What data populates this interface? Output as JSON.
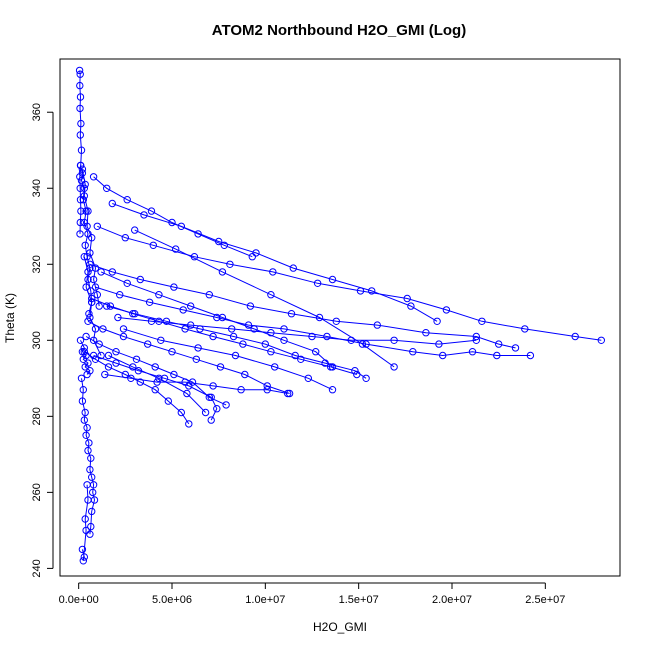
{
  "chart_data": {
    "type": "scatter",
    "title": "ATOM2 Northbound H2O_GMI (Log)",
    "xlabel": "H2O_GMI",
    "ylabel": "Theta (K)",
    "xlim": [
      -1000000,
      29000000
    ],
    "ylim": [
      238,
      374
    ],
    "x_ticks": [
      0,
      5000000,
      10000000,
      15000000,
      20000000,
      25000000
    ],
    "x_tick_labels": [
      "0.0e+00",
      "5.0e+06",
      "1.0e+07",
      "1.5e+07",
      "2.0e+07",
      "2.5e+07"
    ],
    "y_ticks": [
      240,
      260,
      280,
      300,
      320,
      340,
      360
    ],
    "y_tick_labels": [
      "240",
      "260",
      "280",
      "300",
      "320",
      "340",
      "360"
    ],
    "grid": false,
    "legend": "none",
    "color": "#0000ff",
    "marker": "open-circle",
    "connected": true,
    "series": [
      {
        "x": [
          50000,
          80000,
          60000,
          100000,
          70000,
          120000,
          90000,
          150000,
          110000,
          60000,
          80000,
          100000,
          120000,
          90000,
          70000
        ],
        "y": [
          371,
          370,
          367,
          364,
          361,
          357,
          354,
          350,
          346,
          343,
          340,
          337,
          334,
          331,
          328
        ]
      },
      {
        "x": [
          100000,
          200000,
          150000,
          300000,
          250000,
          400000,
          300000,
          500000,
          350000,
          450000,
          600000,
          500000,
          650000,
          700000,
          550000
        ],
        "y": [
          346,
          344,
          342,
          340,
          337,
          334,
          331,
          328,
          325,
          322,
          319,
          316,
          313,
          310,
          307
        ]
      },
      {
        "x": [
          200000,
          350000,
          300000,
          500000,
          450000,
          700000,
          600000,
          900000,
          800000,
          1000000,
          1100000
        ],
        "y": [
          345,
          341,
          338,
          334,
          330,
          327,
          323,
          319,
          316,
          312,
          309
        ]
      },
      {
        "x": [
          300000,
          500000,
          400000,
          700000,
          600000,
          900000,
          800000,
          1200000
        ],
        "y": [
          322,
          318,
          314,
          310,
          306,
          303,
          300,
          296
        ]
      },
      {
        "x": [
          100000,
          300000,
          200000,
          400000,
          250000,
          500000,
          350000,
          600000,
          450000
        ],
        "y": [
          300,
          298,
          297,
          296,
          295,
          294,
          293,
          292,
          291
        ]
      },
      {
        "x": [
          150000,
          250000,
          200000,
          350000,
          300000,
          450000,
          400000,
          550000,
          500000,
          650000,
          600000,
          700000,
          800000,
          750000,
          850000,
          700000,
          650000,
          600000
        ],
        "y": [
          290,
          287,
          284,
          281,
          279,
          277,
          275,
          273,
          271,
          269,
          266,
          264,
          262,
          260,
          258,
          255,
          251,
          249
        ]
      },
      {
        "x": [
          200000,
          300000,
          250000,
          400000,
          350000,
          500000,
          450000
        ],
        "y": [
          245,
          243,
          242,
          250,
          253,
          258,
          262
        ]
      },
      {
        "x": [
          800000,
          1500000,
          2600000,
          3900000,
          5000000,
          6400000,
          7800000,
          9300000
        ],
        "y": [
          343,
          340,
          337,
          334,
          331,
          328,
          325,
          322
        ]
      },
      {
        "x": [
          1000000,
          2500000,
          4000000,
          6200000,
          8100000,
          10400000,
          12800000,
          15100000,
          17600000,
          19700000,
          21600000,
          23900000,
          26600000,
          28000000
        ],
        "y": [
          330,
          327,
          325,
          322,
          320,
          318,
          315,
          313,
          311,
          308,
          305,
          303,
          301,
          300
        ]
      },
      {
        "x": [
          600000,
          1800000,
          3300000,
          5100000,
          7000000,
          9200000,
          11400000,
          13800000,
          16000000,
          18600000,
          21300000,
          22500000,
          23400000
        ],
        "y": [
          320,
          318,
          316,
          314,
          312,
          309,
          307,
          305,
          304,
          302,
          301,
          299,
          298
        ]
      },
      {
        "x": [
          900000,
          2200000,
          3800000,
          5600000,
          7400000,
          9100000,
          11000000,
          13300000,
          15400000,
          17900000,
          19500000,
          21100000,
          22400000,
          24200000
        ],
        "y": [
          314,
          312,
          310,
          308,
          306,
          304,
          303,
          301,
          299,
          297,
          296,
          297,
          296,
          296
        ]
      },
      {
        "x": [
          700000,
          1700000,
          2900000,
          4300000,
          5700000,
          7200000,
          8800000,
          10300000,
          11900000,
          13500000,
          14900000
        ],
        "y": [
          311,
          309,
          307,
          305,
          303,
          301,
          299,
          297,
          295,
          293,
          291
        ]
      },
      {
        "x": [
          500000,
          1300000,
          2400000,
          3700000,
          5000000,
          6300000,
          7600000,
          8900000,
          10100000,
          11300000
        ],
        "y": [
          305,
          303,
          301,
          299,
          297,
          295,
          293,
          291,
          288,
          286
        ]
      },
      {
        "x": [
          400000,
          1100000,
          2000000,
          3100000,
          4100000,
          5100000,
          6100000,
          7000000,
          7900000
        ],
        "y": [
          301,
          299,
          297,
          295,
          293,
          291,
          289,
          285,
          283
        ]
      },
      {
        "x": [
          300000,
          900000,
          1600000,
          2500000,
          3300000,
          4100000,
          4800000,
          5500000,
          5900000
        ],
        "y": [
          297,
          295,
          293,
          291,
          289,
          287,
          284,
          281,
          278
        ]
      },
      {
        "x": [
          800000,
          2000000,
          3200000,
          4600000,
          5900000,
          7100000,
          7400000,
          7100000
        ],
        "y": [
          296,
          294,
          292,
          290,
          288,
          285,
          282,
          279
        ]
      },
      {
        "x": [
          1200000,
          2600000,
          4300000,
          6000000,
          7700000,
          9400000,
          11000000,
          12700000,
          13600000
        ],
        "y": [
          318,
          315,
          312,
          309,
          306,
          303,
          300,
          297,
          293
        ]
      },
      {
        "x": [
          1500000,
          3000000,
          4700000,
          6500000,
          8300000,
          10000000,
          11600000,
          13200000,
          14800000,
          15400000
        ],
        "y": [
          309,
          307,
          305,
          303,
          301,
          299,
          296,
          294,
          292,
          290
        ]
      },
      {
        "x": [
          1800000,
          3500000,
          5500000,
          7500000,
          9500000,
          11500000,
          13600000,
          15700000,
          17800000,
          19200000
        ],
        "y": [
          336,
          333,
          330,
          326,
          323,
          319,
          316,
          313,
          309,
          305
        ]
      },
      {
        "x": [
          2100000,
          3900000,
          6000000,
          8200000,
          10300000,
          12500000,
          14600000,
          16900000,
          19300000,
          21300000
        ],
        "y": [
          306,
          305,
          304,
          303,
          302,
          301,
          300,
          300,
          299,
          300
        ]
      },
      {
        "x": [
          1400000,
          2800000,
          4200000,
          5700000,
          7200000,
          8700000,
          10100000,
          11200000
        ],
        "y": [
          291,
          290,
          289,
          289,
          288,
          287,
          287,
          286
        ]
      },
      {
        "x": [
          2400000,
          4400000,
          6400000,
          8400000,
          10500000,
          12300000,
          13600000
        ],
        "y": [
          303,
          300,
          298,
          296,
          293,
          290,
          287
        ]
      },
      {
        "x": [
          3000000,
          5200000,
          7700000,
          10300000,
          12900000,
          15200000,
          16900000
        ],
        "y": [
          329,
          324,
          318,
          312,
          306,
          299,
          293
        ]
      },
      {
        "x": [
          1600000,
          2900000,
          4300000,
          5800000,
          6800000
        ],
        "y": [
          296,
          293,
          290,
          286,
          281
        ]
      }
    ]
  }
}
